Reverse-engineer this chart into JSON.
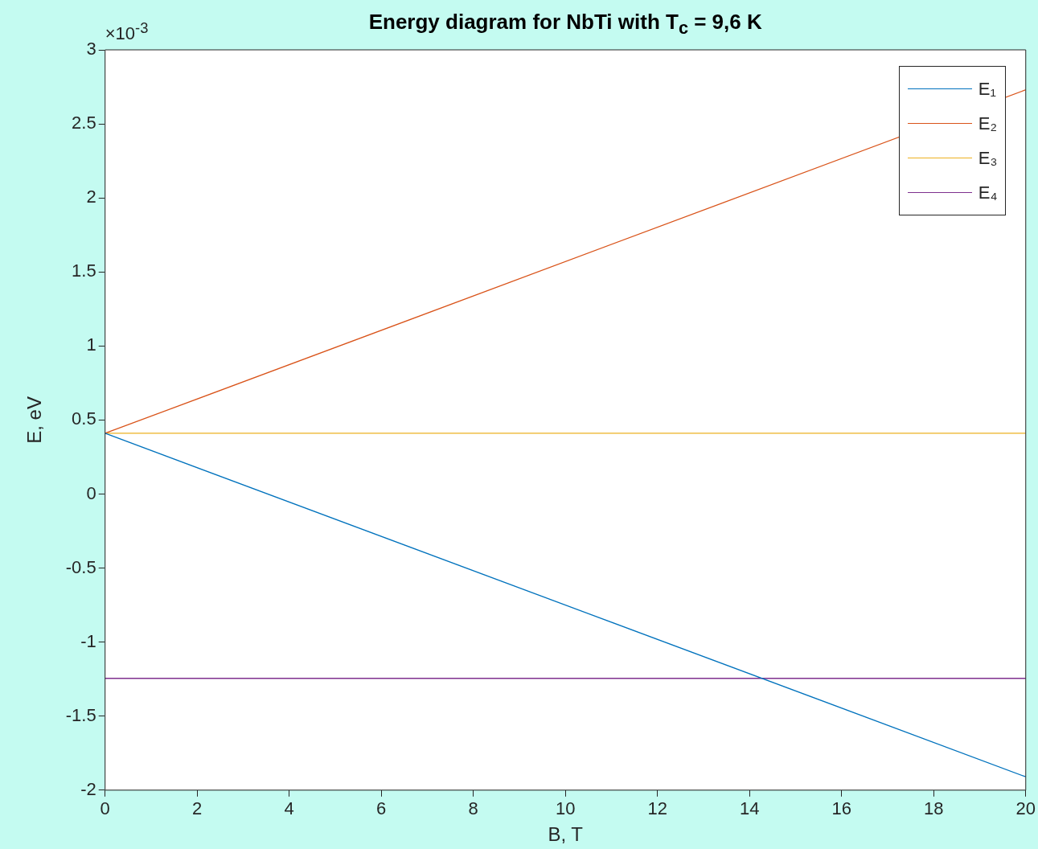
{
  "chart_data": {
    "type": "line",
    "title": "Energy diagram for NbTi with T$_{c}$ = 9,6 K",
    "xlabel": "B, T",
    "ylabel": "E, eV",
    "annotations": [
      "×10$^{-3}$"
    ],
    "x": [
      0,
      20
    ],
    "series": [
      {
        "name": "E₁",
        "color": "#0072bd",
        "values": [
          0.41,
          -1.91
        ]
      },
      {
        "name": "E₂",
        "color": "#d95319",
        "values": [
          0.41,
          2.73
        ]
      },
      {
        "name": "E₃",
        "color": "#edb120",
        "values": [
          0.41,
          0.41
        ]
      },
      {
        "name": "E₄",
        "color": "#7e2f8e",
        "values": [
          -1.245,
          -1.245
        ]
      }
    ],
    "xlim": [
      0,
      20
    ],
    "xticks": [
      0,
      2,
      4,
      6,
      8,
      10,
      12,
      14,
      16,
      18,
      20
    ],
    "ylim": [
      -2,
      3
    ],
    "yticks": [
      -2,
      -1.5,
      -1,
      -0.5,
      0,
      0.5,
      1,
      1.5,
      2,
      2.5,
      3
    ],
    "grid": false,
    "legend": "top right",
    "marker": "none",
    "line_style": "solid"
  }
}
